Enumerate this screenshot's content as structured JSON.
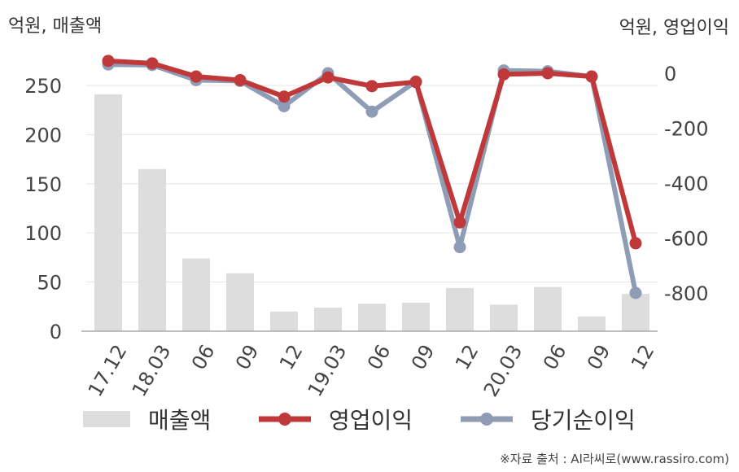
{
  "units": {
    "left": "억원, 매출액",
    "right": "억원, 영업이익"
  },
  "source": "※자료 출처 : AI라씨로(www.rassiro.com)",
  "colors": {
    "revenue": "#dddddd",
    "operating_profit": "#c0393a",
    "net_income": "#8f9cb5"
  },
  "chart_data": {
    "type": "bar+line",
    "categories": [
      "17.12",
      "18.03",
      "06",
      "09",
      "12",
      "19.03",
      "06",
      "09",
      "12",
      "20.03",
      "06",
      "09",
      "12"
    ],
    "y_left": {
      "ticks": [
        0,
        50,
        100,
        150,
        200,
        250
      ],
      "range": [
        0,
        275
      ]
    },
    "y_right": {
      "ticks": [
        0,
        -200,
        -400,
        -600,
        -800
      ],
      "range": [
        -950,
        60
      ]
    },
    "series": [
      {
        "name": "매출액",
        "type": "bar",
        "axis": "left",
        "values": [
          241,
          165,
          74,
          59,
          20,
          24,
          28,
          29,
          44,
          27,
          45,
          15,
          38
        ]
      },
      {
        "name": "영업이익",
        "type": "line",
        "axis": "right",
        "values": [
          45,
          36,
          -12,
          -25,
          -85,
          -15,
          -47,
          -32,
          -543,
          -4,
          0,
          -12,
          -619
        ]
      },
      {
        "name": "당기순이익",
        "type": "line",
        "axis": "right",
        "values": [
          32,
          30,
          -25,
          -28,
          -120,
          0,
          -140,
          -30,
          -633,
          10,
          7,
          -12,
          -800
        ]
      }
    ],
    "grid": true,
    "legend": "bottom"
  }
}
